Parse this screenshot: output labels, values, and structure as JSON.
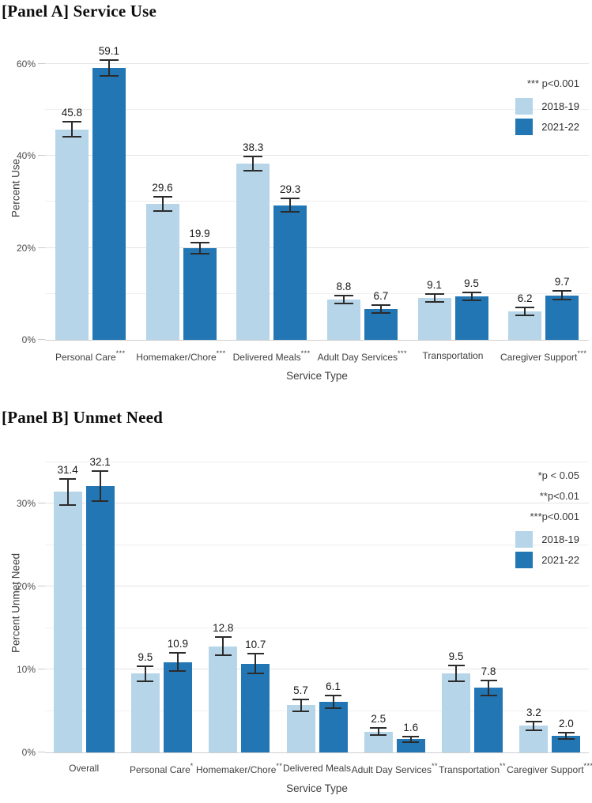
{
  "figure": {
    "background": "#ffffff",
    "text_color": "#3f3f3f"
  },
  "colors": {
    "series_2018_19": "#b6d5e8",
    "series_2021_22": "#2376b4",
    "error_bar": "#2b2b2b",
    "grid_minor": "#efefef",
    "grid_major": "#e4e4e4",
    "baseline": "#cfcfcf"
  },
  "chart_data": [
    {
      "panel_id": "A",
      "type": "bar",
      "title": "[Panel A] Service Use",
      "ylabel": "Percent Use",
      "xlabel": "Service Type",
      "ylim": [
        0,
        66
      ],
      "grid_step": 10,
      "yticks": [
        {
          "value": 0,
          "label": "0%"
        },
        {
          "value": 20,
          "label": "20%"
        },
        {
          "value": 40,
          "label": "40%"
        },
        {
          "value": 60,
          "label": "60%"
        }
      ],
      "categories": [
        {
          "label": "Personal Care",
          "sig": "***"
        },
        {
          "label": "Homemaker/Chore",
          "sig": "***"
        },
        {
          "label": "Delivered Meals",
          "sig": "***"
        },
        {
          "label": "Adult Day Services",
          "sig": "***"
        },
        {
          "label": "Transportation",
          "sig": ""
        },
        {
          "label": "Caregiver Support",
          "sig": "***"
        }
      ],
      "series": [
        {
          "name": "2018-19",
          "color": "#b6d5e8",
          "values": [
            45.8,
            29.6,
            38.3,
            8.8,
            9.1,
            6.2
          ],
          "errors": [
            1.6,
            1.5,
            1.6,
            0.9,
            0.9,
            0.8
          ]
        },
        {
          "name": "2021-22",
          "color": "#2376b4",
          "values": [
            59.1,
            19.9,
            29.3,
            6.7,
            9.5,
            9.7
          ],
          "errors": [
            1.7,
            1.2,
            1.5,
            0.8,
            0.9,
            1.0
          ]
        }
      ],
      "legend": {
        "notes": [
          "*** p<0.001"
        ],
        "entries": [
          {
            "label": "2018-19",
            "color": "#b6d5e8"
          },
          {
            "label": "2021-22",
            "color": "#2376b4"
          }
        ]
      }
    },
    {
      "panel_id": "B",
      "type": "bar",
      "title": "[Panel B] Unmet Need",
      "ylabel": "Percent Unmet Need",
      "xlabel": "Service Type",
      "ylim": [
        0,
        36
      ],
      "grid_step": 5,
      "yticks": [
        {
          "value": 0,
          "label": "0%"
        },
        {
          "value": 10,
          "label": "10%"
        },
        {
          "value": 20,
          "label": "20%"
        },
        {
          "value": 30,
          "label": "30%"
        }
      ],
      "categories": [
        {
          "label": "Overall",
          "sig": ""
        },
        {
          "label": "Personal Care",
          "sig": "*"
        },
        {
          "label": "Homemaker/Chore",
          "sig": "**"
        },
        {
          "label": "Delivered Meals",
          "sig": ""
        },
        {
          "label": "Adult Day Services",
          "sig": "**"
        },
        {
          "label": "Transportation",
          "sig": "**"
        },
        {
          "label": "Caregiver Support",
          "sig": "***"
        }
      ],
      "series": [
        {
          "name": "2018-19",
          "color": "#b6d5e8",
          "values": [
            31.4,
            9.5,
            12.8,
            5.7,
            2.5,
            9.5,
            3.2
          ],
          "errors": [
            1.6,
            0.9,
            1.1,
            0.7,
            0.45,
            0.95,
            0.5
          ]
        },
        {
          "name": "2021-22",
          "color": "#2376b4",
          "values": [
            32.1,
            10.9,
            10.7,
            6.1,
            1.6,
            7.8,
            2.0
          ],
          "errors": [
            1.8,
            1.1,
            1.2,
            0.8,
            0.35,
            0.9,
            0.4
          ]
        }
      ],
      "legend": {
        "notes": [
          "*p < 0.05",
          "**p<0.01",
          "***p<0.001"
        ],
        "entries": [
          {
            "label": "2018-19",
            "color": "#b6d5e8"
          },
          {
            "label": "2021-22",
            "color": "#2376b4"
          }
        ]
      }
    }
  ]
}
